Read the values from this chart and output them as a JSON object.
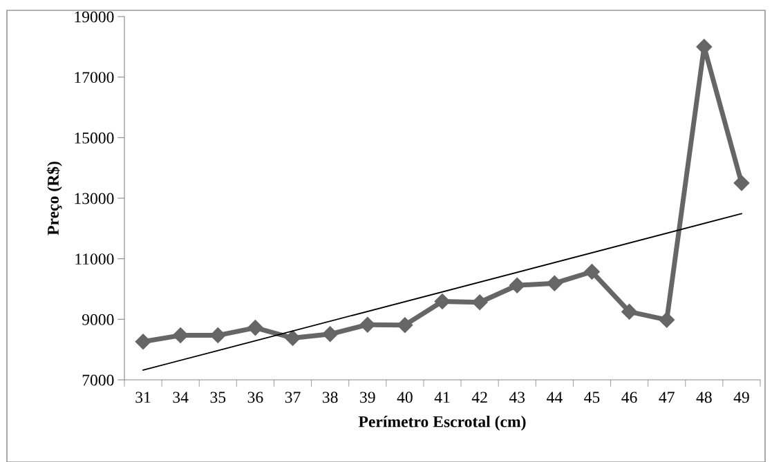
{
  "chart_data": {
    "type": "line",
    "xlabel": "Perímetro Escrotal (cm)",
    "ylabel": "Preço (R$)",
    "categories": [
      "31",
      "34",
      "35",
      "36",
      "37",
      "38",
      "39",
      "40",
      "41",
      "42",
      "43",
      "44",
      "45",
      "46",
      "47",
      "48",
      "49"
    ],
    "series": [
      {
        "color": "#666666",
        "marker": "diamond",
        "values": [
          8260,
          8470,
          8470,
          8720,
          8380,
          8510,
          8820,
          8810,
          9590,
          9560,
          10120,
          10190,
          10570,
          9250,
          8980,
          18000,
          13500
        ]
      },
      {
        "type": "line",
        "color": "#000000",
        "marker": "none",
        "x": [
          "31",
          "49"
        ],
        "values": [
          7320,
          12490
        ]
      }
    ],
    "ylim": [
      7000,
      19000
    ],
    "yticks": [
      7000,
      9000,
      11000,
      13000,
      15000,
      17000,
      19000
    ],
    "grid": false,
    "legend": false
  }
}
